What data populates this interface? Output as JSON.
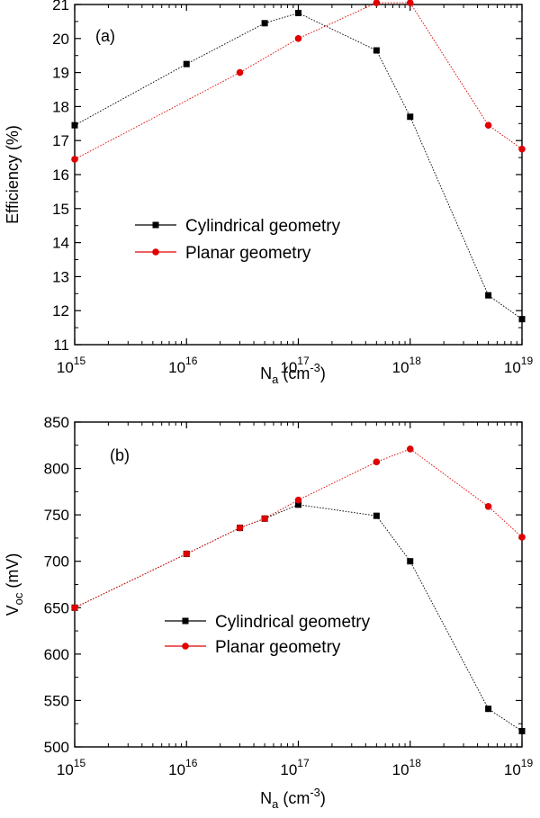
{
  "chart_data": [
    {
      "type": "line",
      "panel_label": "(a)",
      "xlabel": {
        "base": "N",
        "sub": "a",
        "unit_pre": " (cm",
        "unit_sup": "-3",
        "unit_post": ")"
      },
      "ylabel": "Efficiency (%)",
      "xscale": "log",
      "xlim": [
        1000000000000000.0,
        1e+19
      ],
      "ylim": [
        11,
        21
      ],
      "yticks": [
        "11",
        "12",
        "13",
        "14",
        "15",
        "16",
        "17",
        "18",
        "19",
        "20",
        "21"
      ],
      "xticks": [
        {
          "base": "10",
          "exp": "15"
        },
        {
          "base": "10",
          "exp": "16"
        },
        {
          "base": "10",
          "exp": "17"
        },
        {
          "base": "10",
          "exp": "18"
        },
        {
          "base": "10",
          "exp": "19"
        }
      ],
      "grid": false,
      "legend_position": "center-left",
      "series": [
        {
          "name": "Cylindrical geometry",
          "color": "#000000",
          "marker": "square",
          "x": [
            1000000000000000.0,
            1e+16,
            5e+16,
            1e+17,
            5e+17,
            1e+18,
            5e+18,
            1e+19
          ],
          "y": [
            17.45,
            19.25,
            20.45,
            20.75,
            19.65,
            17.7,
            12.45,
            11.75
          ]
        },
        {
          "name": "Planar geometry",
          "color": "#e00000",
          "marker": "circle",
          "x": [
            1000000000000000.0,
            3e+16,
            1e+17,
            5e+17,
            1e+18,
            5e+18,
            1e+19
          ],
          "y": [
            16.45,
            19.0,
            20.0,
            21.05,
            21.05,
            17.45,
            16.75
          ]
        }
      ]
    },
    {
      "type": "line",
      "panel_label": "(b)",
      "xlabel": {
        "base": "N",
        "sub": "a",
        "unit_pre": " (cm",
        "unit_sup": "-3",
        "unit_post": ")"
      },
      "ylabel": {
        "base": "V",
        "sub": "oc",
        "unit": " (mV)"
      },
      "xscale": "log",
      "xlim": [
        1000000000000000.0,
        1e+19
      ],
      "ylim": [
        500,
        850
      ],
      "yticks": [
        "500",
        "550",
        "600",
        "650",
        "700",
        "750",
        "800",
        "850"
      ],
      "xticks": [
        {
          "base": "10",
          "exp": "15"
        },
        {
          "base": "10",
          "exp": "16"
        },
        {
          "base": "10",
          "exp": "17"
        },
        {
          "base": "10",
          "exp": "18"
        },
        {
          "base": "10",
          "exp": "19"
        }
      ],
      "grid": false,
      "legend_position": "center-left",
      "series": [
        {
          "name": "Cylindrical geometry",
          "color": "#000000",
          "marker": "square",
          "x": [
            1000000000000000.0,
            1e+16,
            3e+16,
            5e+16,
            1e+17,
            5e+17,
            1e+18,
            5e+18,
            1e+19
          ],
          "y": [
            650,
            708,
            736,
            746,
            761,
            749,
            700,
            541,
            517
          ]
        },
        {
          "name": "Planar geometry",
          "color": "#e00000",
          "marker": "circle",
          "x": [
            1000000000000000.0,
            1e+16,
            3e+16,
            5e+16,
            1e+17,
            5e+17,
            1e+18,
            5e+18,
            1e+19
          ],
          "y": [
            650,
            708,
            736,
            746,
            766,
            807,
            821,
            759,
            726
          ]
        }
      ]
    }
  ]
}
